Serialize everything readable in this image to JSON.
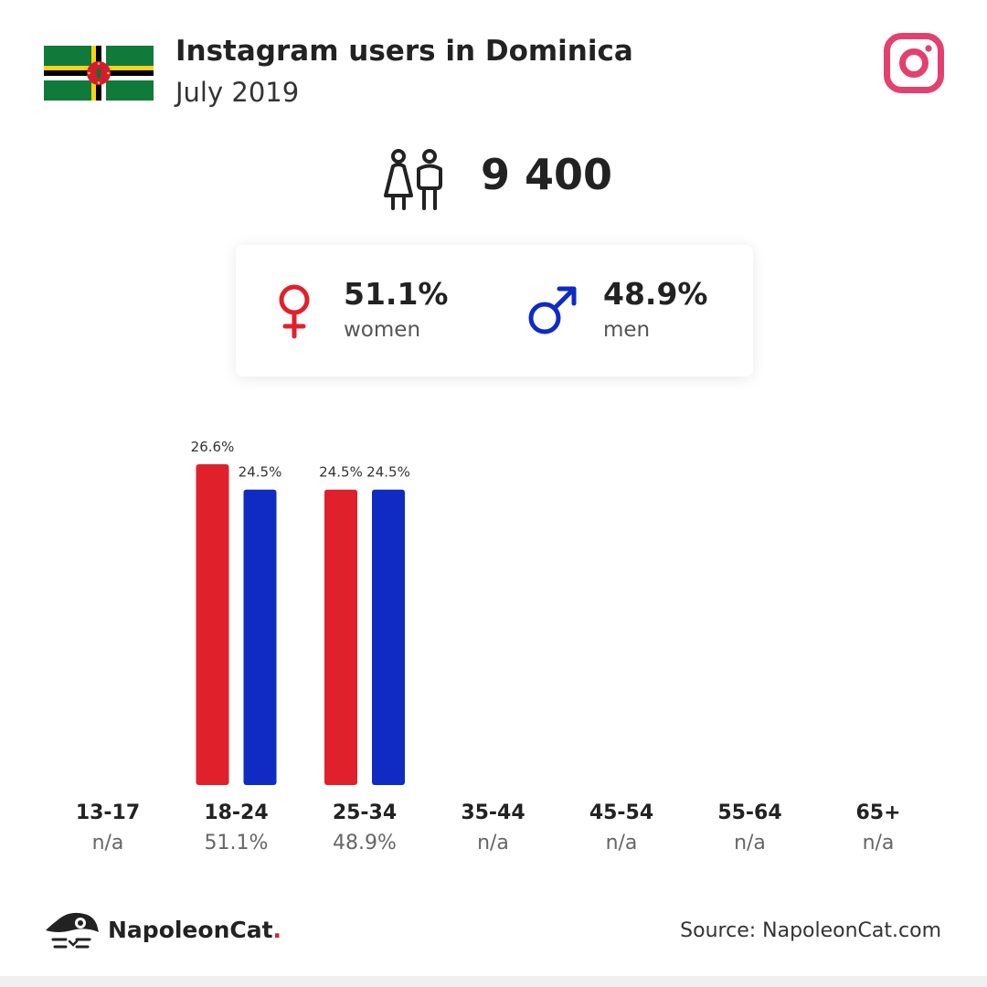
{
  "header": {
    "title": "Instagram users in Dominica",
    "subtitle": "July 2019"
  },
  "summary": {
    "total_users": "9 400",
    "women_pct": "51.1%",
    "women_label": "women",
    "men_pct": "48.9%",
    "men_label": "men"
  },
  "colors": {
    "women": "#e0202b",
    "men": "#0f2bc4",
    "instagram": "#e4406f",
    "flag_green": "#0f7a3a",
    "flag_yellow": "#fcd116",
    "flag_red": "#d41c30"
  },
  "icons": [
    "dominica-flag-icon",
    "instagram-icon",
    "users-icon",
    "female-icon",
    "male-icon",
    "napoleoncat-logo-icon"
  ],
  "chart_data": {
    "type": "bar",
    "categories": [
      "13-17",
      "18-24",
      "25-34",
      "35-44",
      "45-54",
      "55-64",
      "65+"
    ],
    "category_totals": [
      "n/a",
      "51.1%",
      "48.9%",
      "n/a",
      "n/a",
      "n/a",
      "n/a"
    ],
    "series": [
      {
        "name": "women",
        "values": [
          null,
          26.6,
          24.5,
          null,
          null,
          null,
          null
        ],
        "labels": [
          "",
          "26.6%",
          "24.5%",
          "",
          "",
          "",
          ""
        ]
      },
      {
        "name": "men",
        "values": [
          null,
          24.5,
          24.5,
          null,
          null,
          null,
          null
        ],
        "labels": [
          "",
          "24.5%",
          "24.5%",
          "",
          "",
          "",
          ""
        ]
      }
    ],
    "ylim": [
      0,
      26.6
    ]
  },
  "footer": {
    "brand_name": "NapoleonCat",
    "brand_dot": ".",
    "source": "Source: NapoleonCat.com"
  }
}
